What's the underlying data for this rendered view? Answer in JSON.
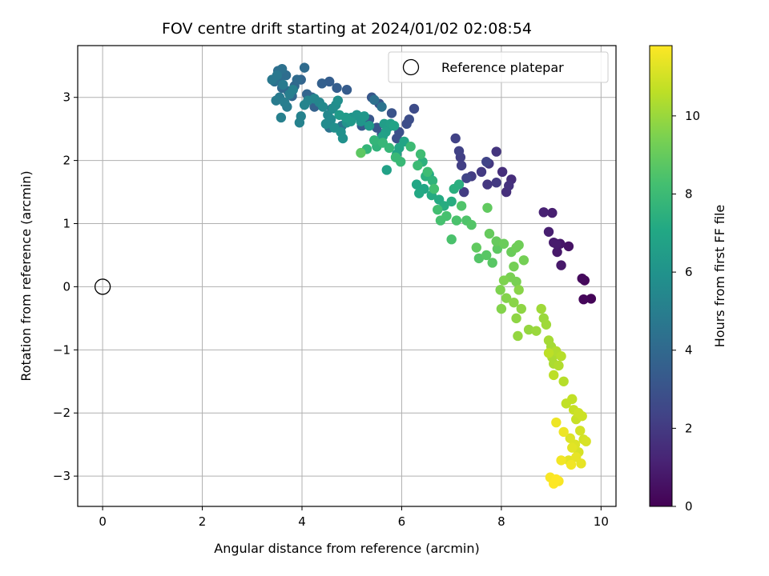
{
  "chart_data": {
    "type": "scatter",
    "title": "FOV centre drift starting at 2024/01/02 02:08:54",
    "xlabel": "Angular distance from reference (arcmin)",
    "ylabel": "Rotation from reference (arcmin)",
    "xlim": [
      -0.5,
      10.3
    ],
    "ylim": [
      -3.48,
      3.82
    ],
    "xticks": [
      0,
      2,
      4,
      6,
      8,
      10
    ],
    "yticks": [
      -3,
      -2,
      -1,
      0,
      1,
      2,
      3
    ],
    "grid": true,
    "legend": {
      "location": "top-right",
      "entries": [
        "Reference platepar"
      ]
    },
    "reference_point": {
      "label": "Reference platepar",
      "x": 0,
      "y": 0
    },
    "colorbar": {
      "label": "Hours from first FF file",
      "colormap": "viridis",
      "range": [
        0,
        11.8
      ],
      "ticks": [
        0,
        2,
        4,
        6,
        8,
        10
      ]
    },
    "points": [
      [
        9.8,
        -0.19,
        0.1
      ],
      [
        9.65,
        -0.2,
        0.2
      ],
      [
        9.67,
        0.1,
        0.2
      ],
      [
        9.62,
        0.13,
        0.3
      ],
      [
        9.35,
        0.64,
        0.6
      ],
      [
        9.18,
        0.68,
        0.7
      ],
      [
        9.2,
        0.34,
        0.8
      ],
      [
        9.12,
        0.55,
        0.8
      ],
      [
        9.05,
        0.7,
        0.9
      ],
      [
        9.1,
        0.68,
        0.9
      ],
      [
        8.95,
        0.87,
        1.0
      ],
      [
        9.02,
        1.17,
        1.0
      ],
      [
        8.85,
        1.18,
        1.1
      ],
      [
        8.2,
        1.7,
        1.5
      ],
      [
        8.1,
        1.5,
        1.6
      ],
      [
        8.02,
        1.82,
        1.6
      ],
      [
        8.15,
        1.6,
        1.7
      ],
      [
        7.9,
        2.14,
        1.8
      ],
      [
        7.75,
        1.95,
        1.9
      ],
      [
        7.72,
        1.62,
        1.9
      ],
      [
        7.6,
        1.82,
        2.0
      ],
      [
        7.9,
        1.65,
        2.0
      ],
      [
        7.4,
        1.75,
        2.1
      ],
      [
        7.25,
        1.5,
        2.1
      ],
      [
        7.2,
        1.92,
        2.2
      ],
      [
        7.18,
        2.05,
        2.2
      ],
      [
        7.15,
        2.15,
        2.3
      ],
      [
        7.08,
        2.35,
        2.3
      ],
      [
        7.3,
        1.72,
        2.4
      ],
      [
        7.7,
        1.98,
        2.4
      ],
      [
        6.25,
        2.82,
        2.7
      ],
      [
        6.15,
        2.65,
        2.8
      ],
      [
        6.1,
        2.58,
        2.8
      ],
      [
        5.95,
        2.45,
        2.9
      ],
      [
        5.9,
        2.35,
        2.9
      ],
      [
        5.8,
        2.75,
        3.0
      ],
      [
        5.55,
        2.9,
        3.0
      ],
      [
        5.6,
        2.42,
        3.1
      ],
      [
        5.5,
        2.52,
        3.1
      ],
      [
        5.4,
        3.0,
        3.2
      ],
      [
        5.35,
        2.65,
        3.2
      ],
      [
        5.3,
        2.58,
        3.3
      ],
      [
        5.2,
        2.55,
        3.3
      ],
      [
        5.1,
        2.72,
        3.4
      ],
      [
        4.9,
        3.12,
        3.4
      ],
      [
        4.7,
        3.15,
        3.5
      ],
      [
        4.55,
        3.25,
        3.5
      ],
      [
        4.6,
        2.82,
        3.6
      ],
      [
        4.4,
        3.22,
        3.6
      ],
      [
        4.2,
        3.0,
        3.7
      ],
      [
        4.25,
        2.85,
        3.7
      ],
      [
        4.1,
        3.05,
        3.8
      ],
      [
        3.98,
        3.28,
        3.8
      ],
      [
        3.85,
        3.18,
        3.9
      ],
      [
        3.8,
        3.02,
        3.9
      ],
      [
        3.72,
        3.1,
        4.0
      ],
      [
        3.6,
        3.15,
        4.0
      ],
      [
        4.05,
        3.47,
        4.1
      ],
      [
        3.9,
        3.28,
        4.1
      ],
      [
        3.68,
        3.35,
        4.2
      ],
      [
        3.55,
        3.3,
        4.2
      ],
      [
        3.45,
        3.25,
        4.3
      ],
      [
        3.52,
        3.42,
        4.3
      ],
      [
        3.6,
        3.45,
        4.4
      ],
      [
        5.45,
        2.96,
        4.4
      ],
      [
        5.6,
        2.85,
        4.5
      ],
      [
        4.55,
        2.52,
        4.5
      ],
      [
        4.8,
        2.55,
        4.6
      ],
      [
        3.4,
        3.28,
        4.7
      ],
      [
        3.5,
        3.35,
        4.7
      ],
      [
        3.62,
        3.2,
        4.8
      ],
      [
        3.55,
        3.0,
        4.8
      ],
      [
        3.48,
        2.95,
        4.9
      ],
      [
        3.7,
        2.85,
        4.9
      ],
      [
        3.65,
        2.92,
        5.0
      ],
      [
        3.75,
        3.05,
        5.0
      ],
      [
        3.82,
        3.12,
        5.1
      ],
      [
        3.58,
        2.68,
        5.1
      ],
      [
        3.95,
        2.6,
        5.2
      ],
      [
        3.98,
        2.7,
        5.2
      ],
      [
        4.05,
        2.88,
        5.3
      ],
      [
        4.12,
        2.95,
        5.3
      ],
      [
        4.25,
        2.98,
        5.4
      ],
      [
        4.35,
        2.92,
        5.4
      ],
      [
        4.42,
        2.85,
        5.5
      ],
      [
        4.52,
        2.72,
        5.5
      ],
      [
        4.48,
        2.58,
        5.6
      ],
      [
        4.58,
        2.65,
        5.6
      ],
      [
        4.62,
        2.82,
        5.7
      ],
      [
        4.68,
        2.88,
        5.7
      ],
      [
        4.72,
        2.95,
        5.8
      ],
      [
        4.65,
        2.52,
        5.8
      ],
      [
        4.78,
        2.45,
        5.9
      ],
      [
        4.82,
        2.35,
        5.9
      ],
      [
        4.9,
        2.6,
        6.0
      ],
      [
        5.0,
        2.68,
        6.0
      ],
      [
        5.1,
        2.72,
        6.1
      ],
      [
        5.18,
        2.62,
        6.1
      ],
      [
        5.25,
        2.7,
        6.2
      ],
      [
        5.35,
        2.55,
        6.3
      ],
      [
        4.98,
        2.62,
        6.3
      ],
      [
        4.88,
        2.68,
        6.4
      ],
      [
        4.75,
        2.72,
        6.4
      ],
      [
        5.65,
        2.58,
        6.5
      ],
      [
        5.72,
        2.52,
        6.5
      ],
      [
        5.78,
        2.58,
        6.6
      ],
      [
        5.68,
        2.45,
        6.6
      ],
      [
        5.62,
        2.38,
        6.7
      ],
      [
        5.7,
        1.85,
        6.7
      ],
      [
        5.85,
        2.55,
        6.8
      ],
      [
        5.9,
        2.1,
        6.8
      ],
      [
        5.95,
        2.2,
        6.9
      ],
      [
        6.05,
        2.3,
        6.9
      ],
      [
        6.3,
        1.62,
        7.0
      ],
      [
        6.45,
        1.55,
        7.0
      ],
      [
        6.35,
        1.48,
        7.1
      ],
      [
        6.55,
        1.78,
        7.1
      ],
      [
        6.6,
        1.45,
        7.2
      ],
      [
        6.75,
        1.38,
        7.2
      ],
      [
        6.85,
        1.28,
        7.3
      ],
      [
        7.0,
        1.35,
        7.3
      ],
      [
        7.05,
        1.55,
        7.4
      ],
      [
        7.15,
        1.62,
        7.4
      ],
      [
        6.42,
        1.98,
        7.5
      ],
      [
        6.48,
        1.75,
        7.5
      ],
      [
        6.62,
        1.68,
        7.6
      ],
      [
        5.5,
        2.22,
        7.6
      ],
      [
        5.3,
        2.18,
        7.7
      ],
      [
        5.45,
        2.32,
        7.7
      ],
      [
        5.62,
        2.28,
        7.8
      ],
      [
        5.75,
        2.2,
        7.8
      ],
      [
        5.88,
        2.05,
        7.9
      ],
      [
        5.98,
        1.98,
        7.9
      ],
      [
        6.18,
        2.22,
        8.0
      ],
      [
        6.32,
        1.92,
        8.0
      ],
      [
        6.38,
        2.1,
        8.1
      ],
      [
        6.52,
        1.82,
        8.1
      ],
      [
        6.65,
        1.55,
        8.2
      ],
      [
        6.72,
        1.22,
        8.2
      ],
      [
        6.78,
        1.05,
        8.3
      ],
      [
        6.9,
        1.12,
        8.3
      ],
      [
        7.0,
        0.75,
        8.4
      ],
      [
        7.1,
        1.05,
        8.4
      ],
      [
        7.2,
        1.28,
        8.5
      ],
      [
        7.3,
        1.05,
        8.5
      ],
      [
        7.4,
        0.98,
        8.6
      ],
      [
        7.55,
        0.45,
        8.6
      ],
      [
        7.7,
        0.5,
        8.7
      ],
      [
        7.82,
        0.38,
        8.7
      ],
      [
        7.92,
        0.6,
        8.8
      ],
      [
        5.18,
        2.12,
        8.8
      ],
      [
        7.5,
        0.62,
        8.9
      ],
      [
        7.72,
        1.25,
        8.9
      ],
      [
        7.76,
        0.84,
        9.0
      ],
      [
        7.9,
        0.72,
        9.0
      ],
      [
        8.05,
        0.68,
        9.1
      ],
      [
        8.2,
        0.55,
        9.1
      ],
      [
        8.3,
        0.62,
        9.2
      ],
      [
        8.35,
        0.66,
        9.2
      ],
      [
        8.45,
        0.42,
        9.3
      ],
      [
        8.25,
        0.32,
        9.3
      ],
      [
        8.18,
        0.15,
        9.4
      ],
      [
        8.3,
        0.08,
        9.4
      ],
      [
        8.05,
        0.1,
        9.5
      ],
      [
        7.98,
        -0.05,
        9.5
      ],
      [
        8.1,
        -0.18,
        9.6
      ],
      [
        8.0,
        -0.35,
        9.6
      ],
      [
        8.25,
        -0.25,
        9.7
      ],
      [
        8.35,
        -0.05,
        9.7
      ],
      [
        8.4,
        -0.35,
        9.8
      ],
      [
        8.3,
        -0.5,
        9.8
      ],
      [
        8.33,
        -0.78,
        9.9
      ],
      [
        8.55,
        -0.68,
        9.9
      ],
      [
        8.7,
        -0.7,
        10.0
      ],
      [
        8.85,
        -0.5,
        10.0
      ],
      [
        8.8,
        -0.35,
        10.1
      ],
      [
        8.9,
        -0.6,
        10.1
      ],
      [
        8.95,
        -0.85,
        10.2
      ],
      [
        9.0,
        -0.95,
        10.2
      ],
      [
        9.02,
        -1.12,
        10.3
      ],
      [
        9.05,
        -1.22,
        10.3
      ],
      [
        9.1,
        -1.02,
        10.4
      ],
      [
        9.15,
        -1.25,
        10.4
      ],
      [
        9.2,
        -1.1,
        10.5
      ],
      [
        9.25,
        -1.5,
        10.5
      ],
      [
        9.05,
        -1.4,
        10.6
      ],
      [
        8.95,
        -1.05,
        10.6
      ],
      [
        9.3,
        -1.85,
        10.7
      ],
      [
        9.42,
        -1.78,
        10.7
      ],
      [
        9.45,
        -1.95,
        10.8
      ],
      [
        9.5,
        -2.1,
        10.8
      ],
      [
        9.55,
        -2.0,
        10.9
      ],
      [
        9.62,
        -2.05,
        10.9
      ],
      [
        9.58,
        -2.28,
        11.0
      ],
      [
        9.65,
        -2.42,
        11.0
      ],
      [
        9.7,
        -2.45,
        11.1
      ],
      [
        9.55,
        -2.62,
        11.1
      ],
      [
        9.48,
        -2.5,
        11.2
      ],
      [
        9.38,
        -2.4,
        11.2
      ],
      [
        9.42,
        -2.55,
        11.3
      ],
      [
        9.35,
        -2.75,
        11.3
      ],
      [
        9.5,
        -2.7,
        11.4
      ],
      [
        9.6,
        -2.8,
        11.4
      ],
      [
        9.1,
        -2.15,
        11.5
      ],
      [
        9.25,
        -2.3,
        11.5
      ],
      [
        9.2,
        -2.75,
        11.6
      ],
      [
        9.4,
        -2.82,
        11.6
      ],
      [
        9.15,
        -3.08,
        11.7
      ],
      [
        8.98,
        -3.02,
        11.7
      ],
      [
        9.05,
        -3.12,
        11.8
      ],
      [
        9.1,
        -3.05,
        11.8
      ]
    ]
  }
}
